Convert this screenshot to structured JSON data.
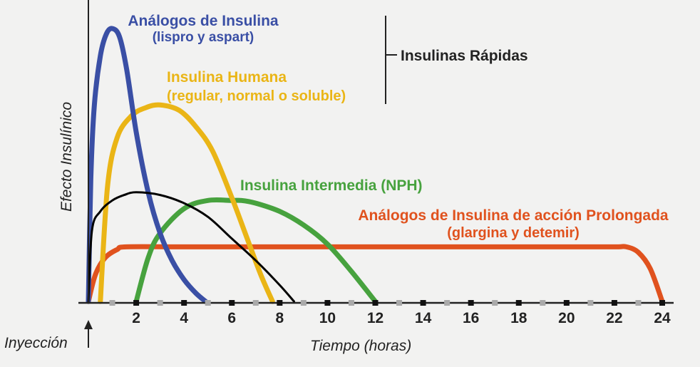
{
  "chart_data": {
    "type": "line",
    "xlabel": "Tiempo (horas)",
    "ylabel": "Efecto Insulínico",
    "origin_label": "Inyección",
    "xlim": [
      0,
      24
    ],
    "ylim": [
      0,
      1
    ],
    "x_ticks": [
      2,
      4,
      6,
      8,
      10,
      12,
      14,
      16,
      18,
      20,
      22,
      24
    ],
    "bracket_label": "Insulinas Rápidas",
    "colors": {
      "analogos_rapidos": "#3a4fa5",
      "humana": "#eab516",
      "intermedia": "#47a23e",
      "prolongada": "#e0521e",
      "anotacion": "#000000",
      "axis": "#222222"
    },
    "series": [
      {
        "name": "Análogos de Insulina",
        "subname": "(lispro y aspart)",
        "color_key": "analogos_rapidos",
        "x": [
          0,
          0.1,
          0.25,
          0.5,
          0.75,
          1.0,
          1.3,
          1.6,
          2.0,
          2.5,
          3.0,
          3.5,
          4.0,
          4.5,
          4.9
        ],
        "y": [
          0,
          0.45,
          0.72,
          0.9,
          0.98,
          1.0,
          0.97,
          0.85,
          0.62,
          0.4,
          0.25,
          0.15,
          0.08,
          0.03,
          0
        ]
      },
      {
        "name": "Insulina Humana",
        "subname": "(regular, normal o soluble)",
        "color_key": "humana",
        "x": [
          0.5,
          0.8,
          1.2,
          1.8,
          2.4,
          3.0,
          3.8,
          4.5,
          5.2,
          6.0,
          6.6,
          7.2,
          7.7
        ],
        "y": [
          0,
          0.42,
          0.6,
          0.68,
          0.71,
          0.72,
          0.7,
          0.64,
          0.55,
          0.38,
          0.24,
          0.1,
          0
        ]
      },
      {
        "name": "Insulina Intermedia (NPH)",
        "color_key": "intermedia",
        "x": [
          2,
          2.5,
          3,
          4,
          5,
          6,
          6.4,
          7,
          8,
          9,
          10,
          11,
          12
        ],
        "y": [
          0,
          0.16,
          0.25,
          0.34,
          0.37,
          0.37,
          0.37,
          0.36,
          0.33,
          0.28,
          0.21,
          0.11,
          0
        ]
      },
      {
        "name": "Análogos de Insulina de acción Prolongada",
        "subname": "(glargina y detemir)",
        "color_key": "prolongada",
        "x": [
          0,
          0.3,
          0.7,
          1.2,
          1.6,
          4,
          8,
          12,
          16,
          20,
          22,
          22.5,
          23,
          23.5,
          24
        ],
        "y": [
          0,
          0.1,
          0.16,
          0.19,
          0.2,
          0.2,
          0.2,
          0.2,
          0.2,
          0.2,
          0.2,
          0.2,
          0.18,
          0.12,
          0
        ]
      },
      {
        "color_key": "anotacion",
        "x": [
          0,
          0.15,
          0.5,
          1.0,
          1.5,
          2.0,
          3.0,
          4.0,
          5.0,
          6.0,
          7.0,
          8.0,
          8.6
        ],
        "y": [
          0,
          0.26,
          0.33,
          0.37,
          0.39,
          0.4,
          0.39,
          0.36,
          0.31,
          0.23,
          0.15,
          0.06,
          0
        ]
      }
    ]
  }
}
